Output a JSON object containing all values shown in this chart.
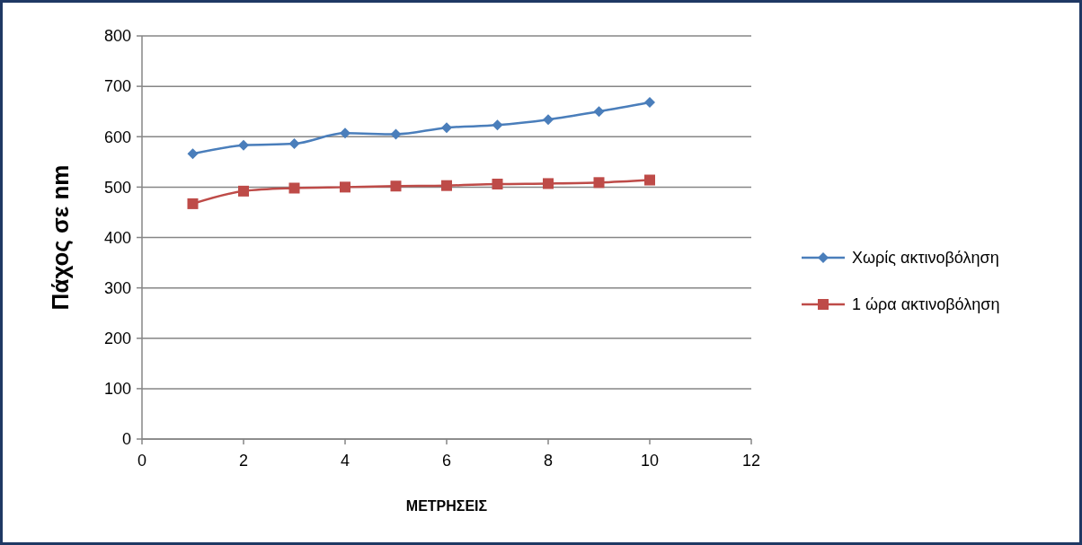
{
  "chart_data": {
    "type": "line",
    "xlabel": "ΜΕΤΡΗΣΕΙΣ",
    "ylabel": "Πάχος σε nm",
    "x": [
      1,
      2,
      3,
      4,
      5,
      6,
      7,
      8,
      9,
      10
    ],
    "series": [
      {
        "name": "Χωρίς ακτινοβόληση",
        "color": "#4a7ebb",
        "marker": "diamond",
        "values": [
          566,
          583,
          586,
          607,
          605,
          618,
          623,
          634,
          650,
          668
        ]
      },
      {
        "name": "1 ώρα ακτινοβόληση",
        "color": "#be4b48",
        "marker": "square",
        "values": [
          467,
          492,
          498,
          500,
          502,
          503,
          506,
          507,
          509,
          514
        ]
      }
    ],
    "xlim": [
      0,
      12
    ],
    "xticks": [
      0,
      2,
      4,
      6,
      8,
      10,
      12
    ],
    "ylim": [
      0,
      800
    ],
    "yticks": [
      0,
      100,
      200,
      300,
      400,
      500,
      600,
      700,
      800
    ],
    "grid": "y",
    "legend": "right"
  }
}
